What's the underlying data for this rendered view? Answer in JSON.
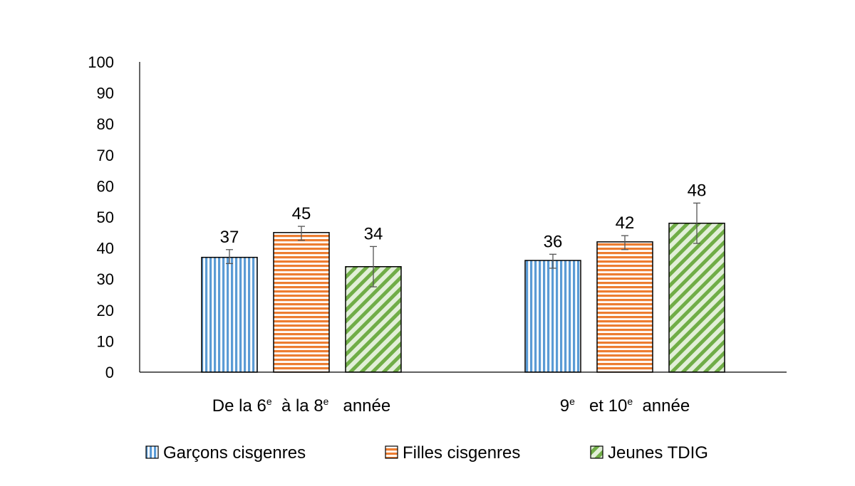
{
  "chart_data": {
    "type": "bar",
    "title": "",
    "xlabel": "",
    "ylabel": "",
    "ylim": [
      0,
      100
    ],
    "yticks": [
      0,
      10,
      20,
      30,
      40,
      50,
      60,
      70,
      80,
      90,
      100
    ],
    "grid": false,
    "legend_position": "bottom",
    "categories": [
      {
        "parts": [
          [
            "De la 6",
            ""
          ],
          [
            "e",
            "sup"
          ],
          [
            "  à la 8",
            ""
          ],
          [
            "e",
            "sup"
          ],
          [
            "   année",
            ""
          ]
        ]
      },
      {
        "parts": [
          [
            "9",
            ""
          ],
          [
            "e",
            "sup"
          ],
          [
            "   et 10",
            ""
          ],
          [
            "e",
            "sup"
          ],
          [
            "  année",
            ""
          ]
        ]
      }
    ],
    "series": [
      {
        "name": "Garçons cisgenres",
        "values": [
          37,
          36
        ],
        "error_low": [
          35.0,
          33.5
        ],
        "error_high": [
          39.5,
          38.0
        ],
        "color": "#5b9bd5",
        "pattern": "vertical-stripes"
      },
      {
        "name": "Filles cisgenres",
        "values": [
          45,
          42
        ],
        "error_low": [
          42.5,
          39.5
        ],
        "error_high": [
          47.0,
          44.0
        ],
        "color": "#ed7d31",
        "pattern": "horizontal-stripes"
      },
      {
        "name": "Jeunes TDIG",
        "values": [
          34,
          48
        ],
        "error_low": [
          27.5,
          41.5
        ],
        "error_high": [
          40.5,
          54.5
        ],
        "color": "#70ad47",
        "pattern": "diagonal-stripes"
      }
    ]
  }
}
